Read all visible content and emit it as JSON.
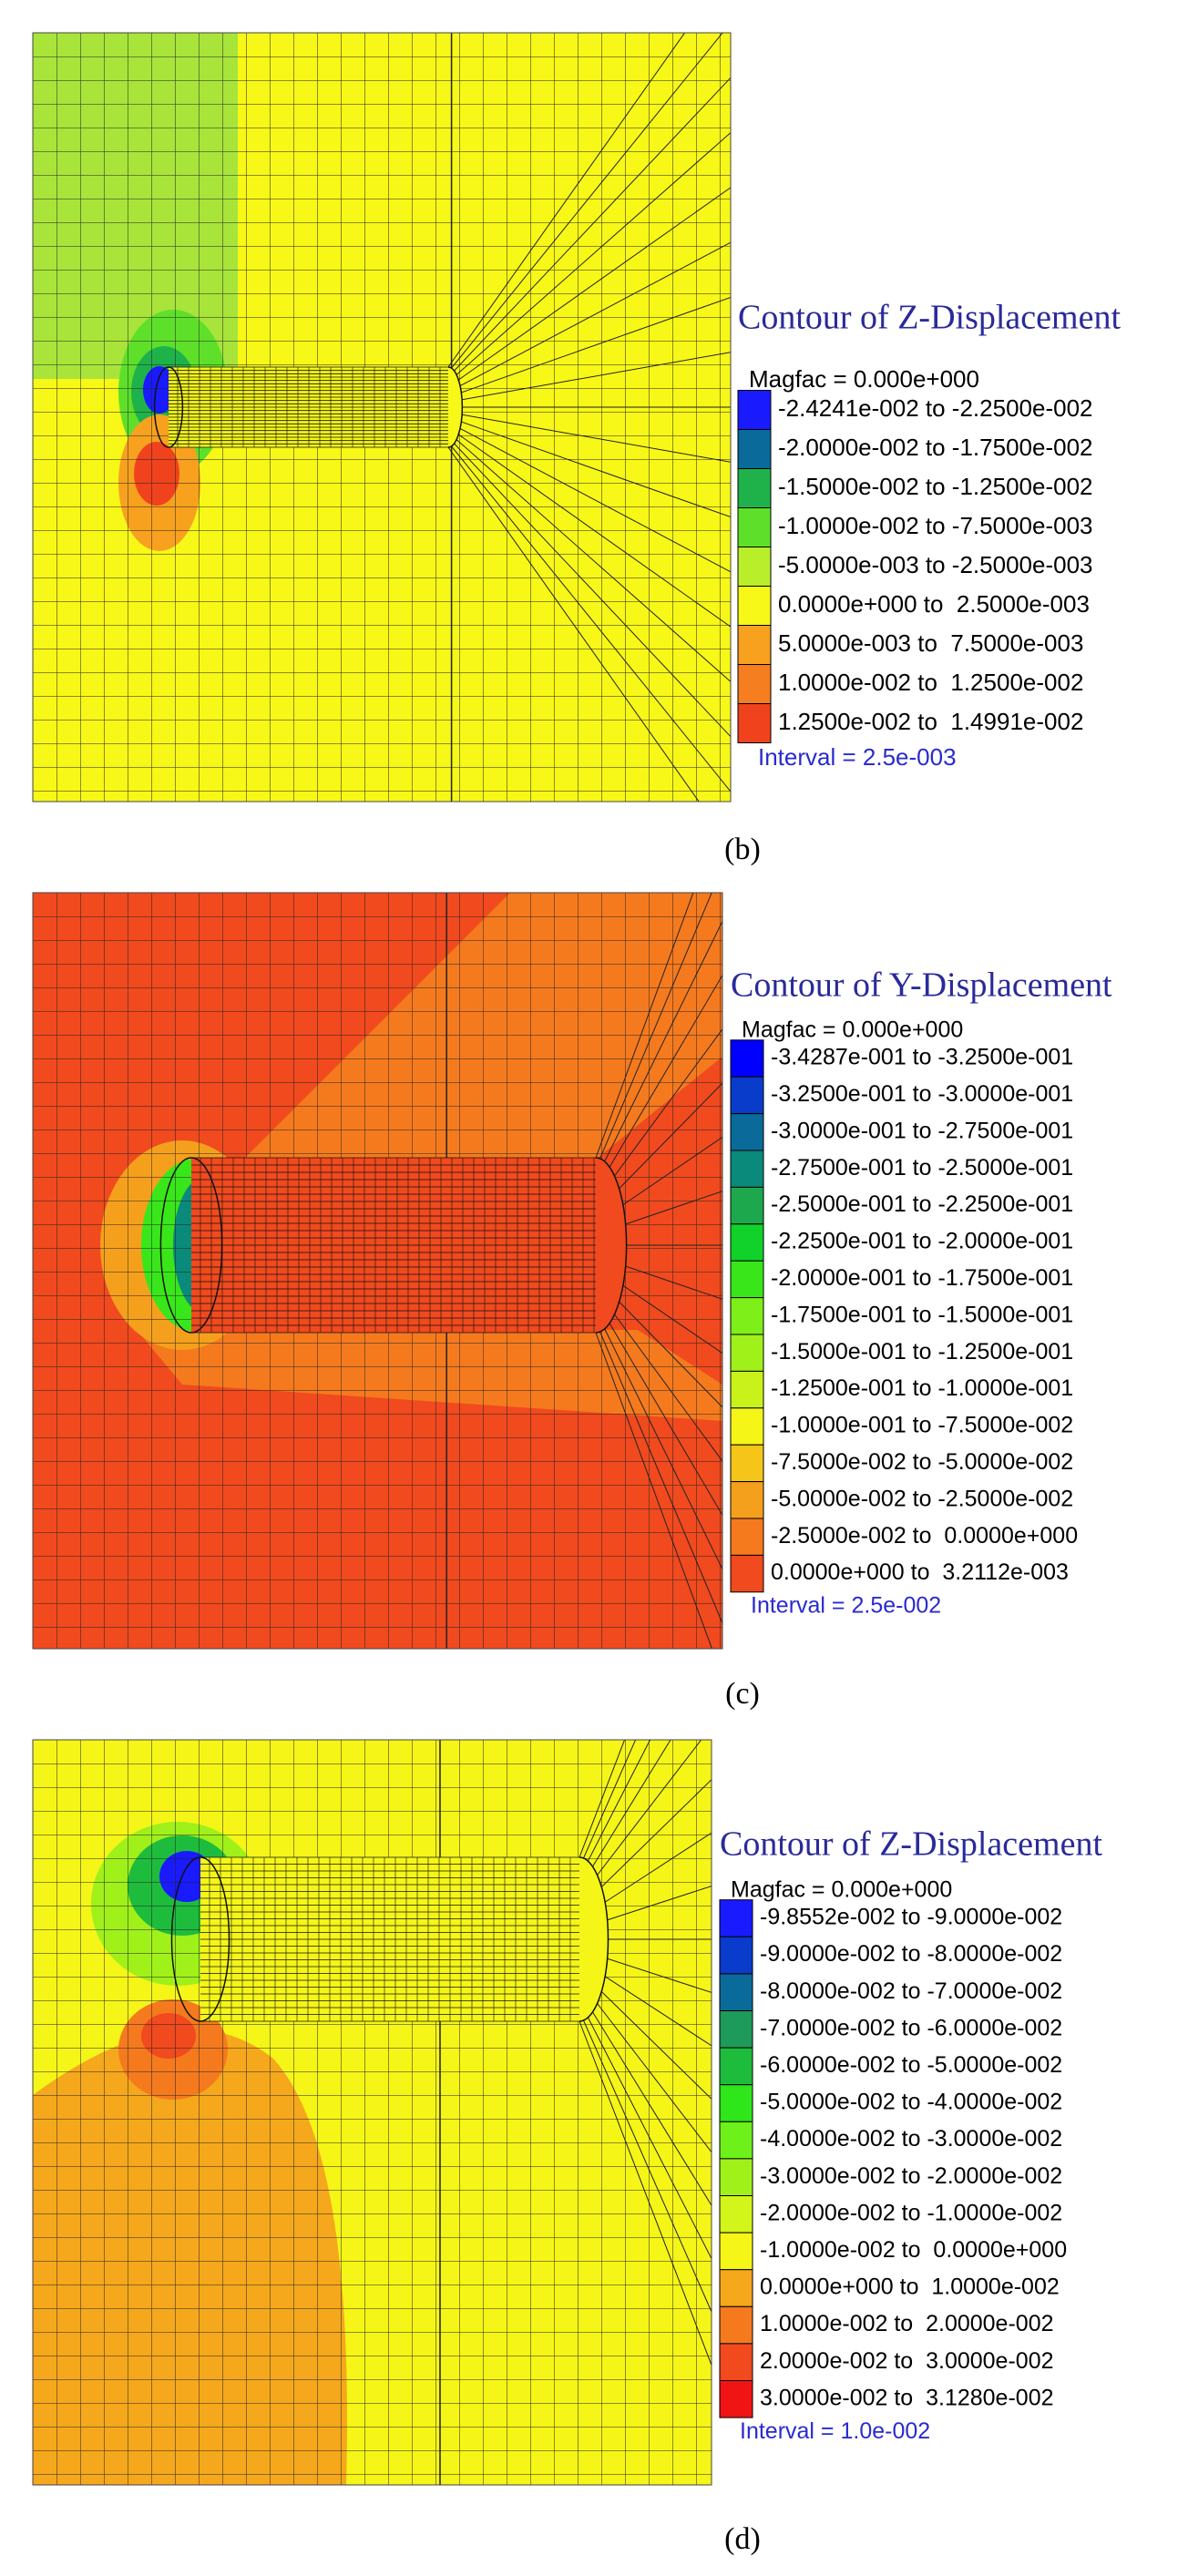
{
  "panels": [
    {
      "legend": {
        "title": "Contour of Z-Displacement",
        "magfac": "Magfac = 0.000e+000",
        "entries": [
          {
            "label": "-2.4241e-002 to -2.2500e-002",
            "color": "#1a1aff"
          },
          {
            "label": "-2.0000e-002 to -1.7500e-002",
            "color": "#0a6a99"
          },
          {
            "label": "-1.5000e-002 to -1.2500e-002",
            "color": "#1fb24a"
          },
          {
            "label": "-1.0000e-002 to -7.5000e-003",
            "color": "#5ee02a"
          },
          {
            "label": "-5.0000e-003 to -2.5000e-003",
            "color": "#b9ef2a"
          },
          {
            "label": "0.0000e+000 to  2.5000e-003",
            "color": "#f7f718"
          },
          {
            "label": "5.0000e-003 to  7.5000e-003",
            "color": "#f7a11f"
          },
          {
            "label": "1.0000e-002 to  1.2500e-002",
            "color": "#f57e20"
          },
          {
            "label": "1.2500e-002 to  1.4991e-002",
            "color": "#f0421c"
          }
        ],
        "interval": "Interval = 2.5e-003"
      },
      "caption": "(b)"
    },
    {
      "legend": {
        "title": "Contour of Y-Displacement",
        "magfac": "Magfac = 0.000e+000",
        "entries": [
          {
            "label": "-3.4287e-001 to -3.2500e-001",
            "color": "#0000ff"
          },
          {
            "label": "-3.2500e-001 to -3.0000e-001",
            "color": "#0a3ccc"
          },
          {
            "label": "-3.0000e-001 to -2.7500e-001",
            "color": "#0a6a99"
          },
          {
            "label": "-2.7500e-001 to -2.5000e-001",
            "color": "#0a8a7a"
          },
          {
            "label": "-2.5000e-001 to -2.2500e-001",
            "color": "#1ea84e"
          },
          {
            "label": "-2.2500e-001 to -2.0000e-001",
            "color": "#11d22a"
          },
          {
            "label": "-2.0000e-001 to -1.7500e-001",
            "color": "#39e61a"
          },
          {
            "label": "-1.7500e-001 to -1.5000e-001",
            "color": "#7eef19"
          },
          {
            "label": "-1.5000e-001 to -1.2500e-001",
            "color": "#a0f01a"
          },
          {
            "label": "-1.2500e-001 to -1.0000e-001",
            "color": "#c8f21a"
          },
          {
            "label": "-1.0000e-001 to -7.5000e-002",
            "color": "#f5f518"
          },
          {
            "label": "-7.5000e-002 to -5.0000e-002",
            "color": "#f5c51a"
          },
          {
            "label": "-5.0000e-002 to -2.5000e-002",
            "color": "#f5a01c"
          },
          {
            "label": "-2.5000e-002 to  0.0000e+000",
            "color": "#f57a1e"
          },
          {
            "label": "0.0000e+000 to  3.2112e-003",
            "color": "#f04a1e"
          }
        ],
        "interval": "Interval = 2.5e-002"
      },
      "caption": "(c)"
    },
    {
      "legend": {
        "title": "Contour of Z-Displacement",
        "magfac": "Magfac = 0.000e+000",
        "entries": [
          {
            "label": "-9.8552e-002 to -9.0000e-002",
            "color": "#1a1aff"
          },
          {
            "label": "-9.0000e-002 to -8.0000e-002",
            "color": "#0a3ccc"
          },
          {
            "label": "-8.0000e-002 to -7.0000e-002",
            "color": "#0a6a99"
          },
          {
            "label": "-7.0000e-002 to -6.0000e-002",
            "color": "#1e9a5a"
          },
          {
            "label": "-6.0000e-002 to -5.0000e-002",
            "color": "#1ebc3c"
          },
          {
            "label": "-5.0000e-002 to -4.0000e-002",
            "color": "#2ee61a"
          },
          {
            "label": "-4.0000e-002 to -3.0000e-002",
            "color": "#6ef01a"
          },
          {
            "label": "-3.0000e-002 to -2.0000e-002",
            "color": "#a0f01a"
          },
          {
            "label": "-2.0000e-002 to -1.0000e-002",
            "color": "#d2f51a"
          },
          {
            "label": "-1.0000e-002 to  0.0000e+000",
            "color": "#f5f518"
          },
          {
            "label": "0.0000e+000 to  1.0000e-002",
            "color": "#f5a81c"
          },
          {
            "label": "1.0000e-002 to  2.0000e-002",
            "color": "#f57a1e"
          },
          {
            "label": "2.0000e-002 to  3.0000e-002",
            "color": "#f04a1e"
          },
          {
            "label": "3.0000e-002 to  3.1280e-002",
            "color": "#f01414"
          }
        ],
        "interval": "Interval = 1.0e-002"
      },
      "caption": "(d)"
    }
  ]
}
